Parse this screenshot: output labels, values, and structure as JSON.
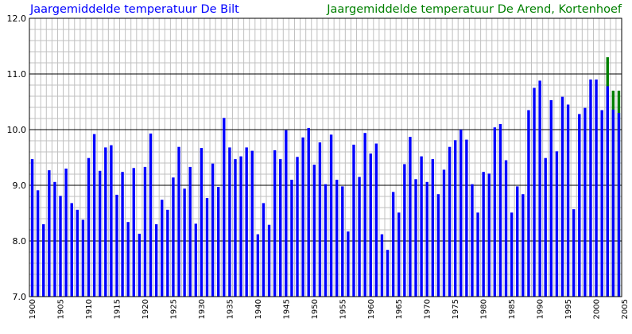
{
  "colors": {
    "debilt": "#0000ff",
    "arend": "#008000",
    "grid_minor": "#c0c0c0",
    "grid_major": "#000000",
    "axis": "#000000"
  },
  "chart_data": {
    "type": "bar",
    "title": "",
    "xlabel": "",
    "ylabel": "",
    "ylim": [
      7.0,
      12.0
    ],
    "xlim": [
      1900,
      2005
    ],
    "grid": true,
    "legend_position": "top",
    "yticks": [
      "7.0",
      "8.0",
      "9.0",
      "10.0",
      "11.0",
      "12.0"
    ],
    "xticks": [
      "1900",
      "1905",
      "1910",
      "1915",
      "1920",
      "1925",
      "1930",
      "1935",
      "1940",
      "1945",
      "1950",
      "1955",
      "1960",
      "1965",
      "1970",
      "1975",
      "1980",
      "1985",
      "1990",
      "1995",
      "2000",
      "2005"
    ],
    "series": [
      {
        "name": "Jaargemiddelde temperatuur De Bilt",
        "x": [
          1900,
          1901,
          1902,
          1903,
          1904,
          1905,
          1906,
          1907,
          1908,
          1909,
          1910,
          1911,
          1912,
          1913,
          1914,
          1915,
          1916,
          1917,
          1918,
          1919,
          1920,
          1921,
          1922,
          1923,
          1924,
          1925,
          1926,
          1927,
          1928,
          1929,
          1930,
          1931,
          1932,
          1933,
          1934,
          1935,
          1936,
          1937,
          1938,
          1939,
          1940,
          1941,
          1942,
          1943,
          1944,
          1945,
          1946,
          1947,
          1948,
          1949,
          1950,
          1951,
          1952,
          1953,
          1954,
          1955,
          1956,
          1957,
          1958,
          1959,
          1960,
          1961,
          1962,
          1963,
          1964,
          1965,
          1966,
          1967,
          1968,
          1969,
          1970,
          1971,
          1972,
          1973,
          1974,
          1975,
          1976,
          1977,
          1978,
          1979,
          1980,
          1981,
          1982,
          1983,
          1984,
          1985,
          1986,
          1987,
          1988,
          1989,
          1990,
          1991,
          1992,
          1993,
          1994,
          1995,
          1996,
          1997,
          1998,
          1999,
          2000,
          2001,
          2002,
          2003,
          2004
        ],
        "values": [
          9.47,
          8.91,
          8.3,
          9.27,
          9.06,
          8.81,
          9.3,
          8.68,
          8.56,
          8.38,
          9.49,
          9.92,
          9.26,
          9.68,
          9.72,
          8.83,
          9.24,
          8.34,
          9.31,
          8.13,
          9.33,
          9.93,
          8.3,
          8.74,
          8.56,
          9.14,
          9.69,
          8.94,
          9.33,
          8.31,
          9.67,
          8.77,
          9.39,
          8.97,
          10.21,
          9.68,
          9.47,
          9.52,
          9.68,
          9.62,
          8.12,
          8.68,
          8.29,
          9.63,
          9.47,
          9.99,
          9.1,
          9.51,
          9.86,
          10.03,
          9.37,
          9.77,
          9.02,
          9.91,
          9.1,
          8.98,
          8.17,
          9.73,
          9.15,
          9.94,
          9.57,
          9.75,
          8.12,
          7.84,
          8.88,
          8.51,
          9.38,
          9.87,
          9.11,
          9.52,
          9.06,
          9.47,
          8.84,
          9.28,
          9.69,
          9.81,
          10.0,
          9.82,
          9.02,
          8.51,
          9.24,
          9.21,
          10.04,
          10.1,
          9.45,
          8.51,
          8.98,
          8.84,
          10.35,
          10.75,
          10.88,
          9.49,
          10.53,
          9.61,
          10.59,
          10.45,
          8.57,
          10.28,
          10.39,
          10.9,
          10.9,
          10.35,
          10.78,
          10.36,
          10.3
        ]
      },
      {
        "name": "Jaargemiddelde temperatuur De Arend, Kortenhoef",
        "x": [
          2002,
          2003,
          2004
        ],
        "values": [
          11.3,
          10.7,
          10.7
        ]
      }
    ]
  }
}
